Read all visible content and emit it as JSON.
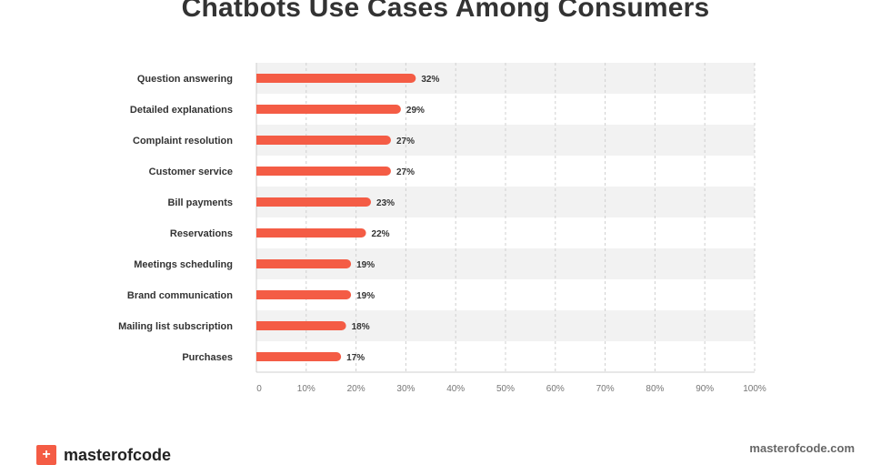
{
  "chart_data": {
    "type": "bar",
    "orientation": "horizontal",
    "title": "Chatbots Use Cases Among Consumers",
    "categories": [
      "Question answering",
      "Detailed explanations",
      "Complaint resolution",
      "Customer service",
      "Bill payments",
      "Reservations",
      "Meetings scheduling",
      "Brand communication",
      "Mailing list subscription",
      "Purchases"
    ],
    "values": [
      32,
      29,
      27,
      27,
      23,
      22,
      19,
      19,
      18,
      17
    ],
    "value_labels": [
      "32%",
      "29%",
      "27%",
      "27%",
      "23%",
      "22%",
      "19%",
      "19%",
      "18%",
      "17%"
    ],
    "xlim": [
      0,
      100
    ],
    "xticks": [
      0,
      10,
      20,
      30,
      40,
      50,
      60,
      70,
      80,
      90,
      100
    ],
    "xtick_labels": [
      "0",
      "10%",
      "20%",
      "30%",
      "40%",
      "50%",
      "60%",
      "70%",
      "80%",
      "90%",
      "100%"
    ],
    "grid": "vertical dashed",
    "bar_color": "#f45c45"
  },
  "footer": {
    "logo_mark": "+",
    "logo_text": "masterofcode",
    "site": "masterofcode.com"
  }
}
